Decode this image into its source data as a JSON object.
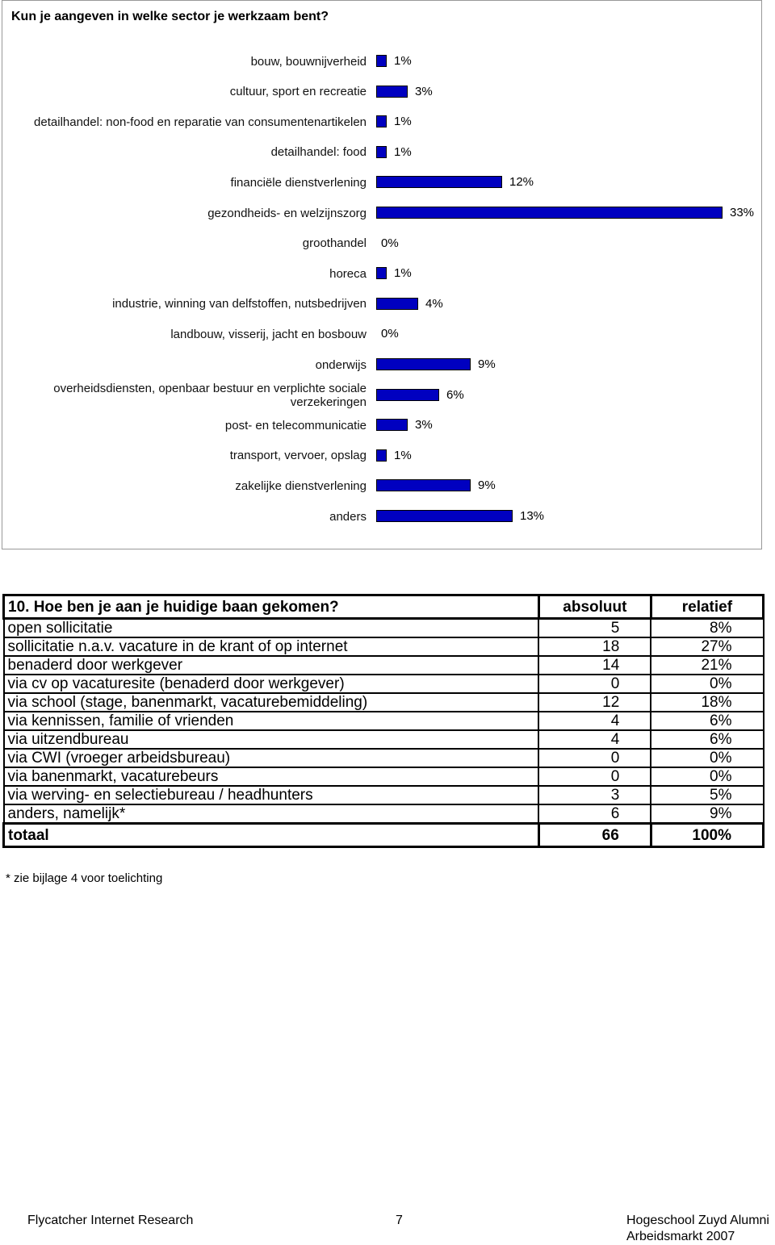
{
  "chart_data": {
    "type": "bar",
    "orientation": "horizontal",
    "title": "Kun je aangeven in welke sector je werkzaam bent?",
    "categories": [
      "bouw, bouwnijverheid",
      "cultuur, sport en recreatie",
      "detailhandel: non-food en reparatie van consumentenartikelen",
      "detailhandel: food",
      "financiële dienstverlening",
      "gezondheids- en welzijnszorg",
      "groothandel",
      "horeca",
      "industrie, winning van delfstoffen, nutsbedrijven",
      "landbouw, visserij, jacht en bosbouw",
      "onderwijs",
      "overheidsdiensten, openbaar bestuur en verplichte sociale verzekeringen",
      "post- en telecommunicatie",
      "transport, vervoer, opslag",
      "zakelijke dienstverlening",
      "anders"
    ],
    "values": [
      1,
      3,
      1,
      1,
      12,
      33,
      0,
      1,
      4,
      0,
      9,
      6,
      3,
      1,
      9,
      13
    ],
    "value_labels": [
      "1%",
      "3%",
      "1%",
      "1%",
      "12%",
      "33%",
      "0%",
      "1%",
      "4%",
      "0%",
      "9%",
      "6%",
      "3%",
      "1%",
      "9%",
      "13%"
    ],
    "color": "#0000c0"
  },
  "table": {
    "header": [
      "10. Hoe ben je aan je huidige baan gekomen?",
      "absoluut",
      "relatief"
    ],
    "rows": [
      [
        "open sollicitatie",
        "5",
        "8%"
      ],
      [
        "sollicitatie n.a.v. vacature in de krant of op internet",
        "18",
        "27%"
      ],
      [
        "benaderd door werkgever",
        "14",
        "21%"
      ],
      [
        "via cv op vacaturesite (benaderd door werkgever)",
        "0",
        "0%"
      ],
      [
        "via school (stage, banenmarkt, vacaturebemiddeling)",
        "12",
        "18%"
      ],
      [
        "via kennissen, familie of vrienden",
        "4",
        "6%"
      ],
      [
        "via uitzendbureau",
        "4",
        "6%"
      ],
      [
        "via CWI (vroeger arbeidsbureau)",
        "0",
        "0%"
      ],
      [
        "via banenmarkt, vacaturebeurs",
        "0",
        "0%"
      ],
      [
        "via werving- en selectiebureau / headhunters",
        "3",
        "5%"
      ],
      [
        "anders, namelijk*",
        "6",
        "9%"
      ]
    ],
    "total": [
      "totaal",
      "66",
      "100%"
    ],
    "footnote": "* zie bijlage 4 voor toelichting"
  },
  "footer": {
    "left": "Flycatcher Internet Research",
    "page": "7",
    "right": [
      "Hogeschool Zuyd Alumni",
      "Arbeidsmarkt 2007"
    ]
  }
}
